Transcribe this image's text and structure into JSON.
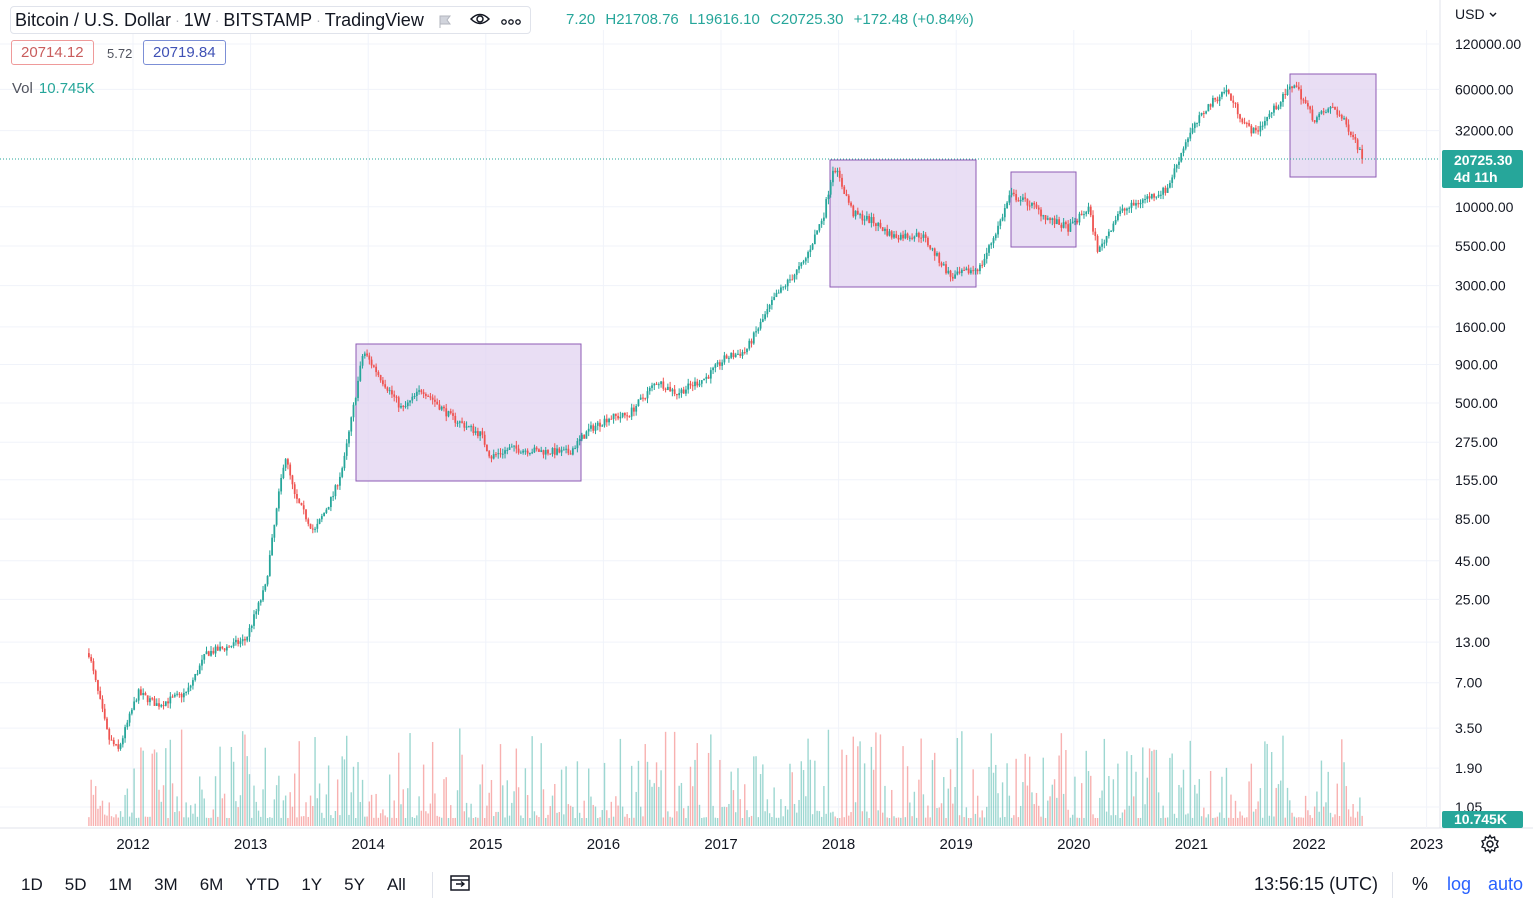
{
  "header": {
    "symbol": "Bitcoin / U.S. Dollar",
    "interval": "1W",
    "exchange": "BITSTAMP",
    "source": "TradingView",
    "ohlc": {
      "open_partial": "7.20",
      "high": "H21708.76",
      "low": "L19616.10",
      "close": "C20725.30",
      "change": "+172.48 (+0.84%)"
    }
  },
  "quote": {
    "bid": "20714.12",
    "spread": "5.72",
    "ask": "20719.84"
  },
  "volume_legend": {
    "label": "Vol",
    "value": "10.745K"
  },
  "price_axis": {
    "currency": "USD",
    "last_price": "20725.30",
    "countdown": "4d 11h",
    "volume_tag": "10.745K"
  },
  "bottom_toolbar": {
    "ranges": [
      "1D",
      "5D",
      "1M",
      "3M",
      "6M",
      "YTD",
      "1Y",
      "5Y",
      "All"
    ],
    "clock": "13:56:15 (UTC)",
    "percent": "%",
    "log": "log",
    "auto": "auto"
  },
  "colors": {
    "up": "#26a69a",
    "down": "#ef5350",
    "highlight_fill": "#e1d3f0",
    "highlight_border": "#8e5bb5",
    "accent": "#2962ff"
  },
  "chart_data": {
    "type": "candlestick",
    "y_scale": "log",
    "ylim": [
      1.05,
      120000
    ],
    "y_ticks": [
      "120000.00",
      "60000.00",
      "32000.00",
      "10000.00",
      "5500.00",
      "3000.00",
      "1600.00",
      "900.00",
      "500.00",
      "275.00",
      "155.00",
      "85.00",
      "45.00",
      "25.00",
      "13.00",
      "7.00",
      "3.50",
      "1.90",
      "1.05"
    ],
    "x_ticks": [
      "2012",
      "2013",
      "2014",
      "2015",
      "2016",
      "2017",
      "2018",
      "2019",
      "2020",
      "2021",
      "2022",
      "2023"
    ],
    "series": [
      {
        "values": [
          {
            "x": "2011-08",
            "y": 11
          },
          {
            "x": "2011-10",
            "y": 3
          },
          {
            "x": "2011-11",
            "y": 2.5
          },
          {
            "x": "2012-01",
            "y": 6
          },
          {
            "x": "2012-03",
            "y": 5
          },
          {
            "x": "2012-06",
            "y": 6
          },
          {
            "x": "2012-08",
            "y": 11
          },
          {
            "x": "2012-10",
            "y": 12
          },
          {
            "x": "2012-12",
            "y": 13.5
          },
          {
            "x": "2013-02",
            "y": 30
          },
          {
            "x": "2013-04",
            "y": 230
          },
          {
            "x": "2013-05",
            "y": 120
          },
          {
            "x": "2013-07",
            "y": 70
          },
          {
            "x": "2013-09",
            "y": 125
          },
          {
            "x": "2013-10",
            "y": 200
          },
          {
            "x": "2013-12",
            "y": 1100
          },
          {
            "x": "2014-02",
            "y": 700
          },
          {
            "x": "2014-04",
            "y": 450
          },
          {
            "x": "2014-06",
            "y": 620
          },
          {
            "x": "2014-09",
            "y": 400
          },
          {
            "x": "2014-12",
            "y": 310
          },
          {
            "x": "2015-01",
            "y": 220
          },
          {
            "x": "2015-03",
            "y": 250
          },
          {
            "x": "2015-06",
            "y": 240
          },
          {
            "x": "2015-09",
            "y": 235
          },
          {
            "x": "2015-11",
            "y": 330
          },
          {
            "x": "2016-01",
            "y": 400
          },
          {
            "x": "2016-03",
            "y": 415
          },
          {
            "x": "2016-06",
            "y": 700
          },
          {
            "x": "2016-08",
            "y": 580
          },
          {
            "x": "2016-11",
            "y": 740
          },
          {
            "x": "2017-01",
            "y": 1000
          },
          {
            "x": "2017-03",
            "y": 1100
          },
          {
            "x": "2017-06",
            "y": 2500
          },
          {
            "x": "2017-09",
            "y": 4300
          },
          {
            "x": "2017-11",
            "y": 9000
          },
          {
            "x": "2017-12",
            "y": 19000
          },
          {
            "x": "2018-02",
            "y": 9000
          },
          {
            "x": "2018-04",
            "y": 8000
          },
          {
            "x": "2018-06",
            "y": 6400
          },
          {
            "x": "2018-09",
            "y": 6500
          },
          {
            "x": "2018-12",
            "y": 3400
          },
          {
            "x": "2019-03",
            "y": 4000
          },
          {
            "x": "2019-05",
            "y": 8000
          },
          {
            "x": "2019-06",
            "y": 12000
          },
          {
            "x": "2019-08",
            "y": 10500
          },
          {
            "x": "2019-10",
            "y": 8200
          },
          {
            "x": "2019-12",
            "y": 7200
          },
          {
            "x": "2020-02",
            "y": 9800
          },
          {
            "x": "2020-03",
            "y": 5000
          },
          {
            "x": "2020-05",
            "y": 9000
          },
          {
            "x": "2020-08",
            "y": 11500
          },
          {
            "x": "2020-10",
            "y": 13000
          },
          {
            "x": "2020-12",
            "y": 28000
          },
          {
            "x": "2021-02",
            "y": 45000
          },
          {
            "x": "2021-04",
            "y": 60000
          },
          {
            "x": "2021-06",
            "y": 35000
          },
          {
            "x": "2021-07",
            "y": 31000
          },
          {
            "x": "2021-09",
            "y": 45000
          },
          {
            "x": "2021-11",
            "y": 66000
          },
          {
            "x": "2022-01",
            "y": 38000
          },
          {
            "x": "2022-03",
            "y": 46000
          },
          {
            "x": "2022-05",
            "y": 30000
          },
          {
            "x": "2022-06",
            "y": 20725.3
          }
        ]
      }
    ]
  }
}
